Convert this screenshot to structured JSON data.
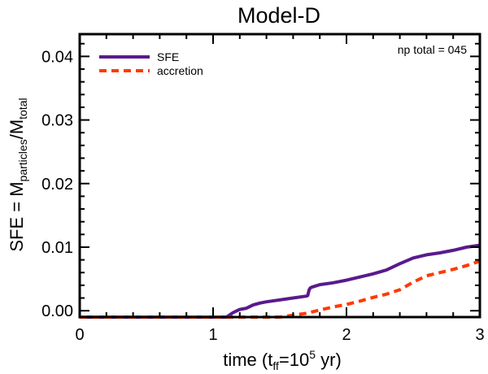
{
  "chart_data": {
    "type": "line",
    "title": "Model-D",
    "xlabel": {
      "main": "time (t",
      "sub": "ff",
      "mid": "=10",
      "sup": "5",
      "tail": " yr)"
    },
    "ylabel": {
      "main": "SFE = M",
      "sub1": "particles",
      "mid": "/M",
      "sub2": "total"
    },
    "xlim": [
      0,
      3
    ],
    "ylim": [
      -0.001,
      0.0435
    ],
    "xticks": [
      0,
      1,
      2,
      3
    ],
    "yticks": [
      0.0,
      0.01,
      0.02,
      0.03,
      0.04
    ],
    "xtick_labels": [
      "0",
      "1",
      "2",
      "3"
    ],
    "ytick_labels": [
      "0.00",
      "0.01",
      "0.02",
      "0.03",
      "0.04"
    ],
    "annotation": "np total = 045",
    "legend": {
      "placement": "top-left",
      "entries": [
        "SFE",
        "accretion"
      ]
    },
    "series": [
      {
        "name": "SFE",
        "color": "#5a1a8c",
        "style": "solid",
        "x": [
          0,
          1.1,
          1.15,
          1.2,
          1.25,
          1.3,
          1.35,
          1.4,
          1.5,
          1.6,
          1.7,
          1.71,
          1.72,
          1.73,
          1.74,
          1.8,
          1.9,
          2.0,
          2.1,
          2.2,
          2.3,
          2.4,
          2.5,
          2.6,
          2.7,
          2.8,
          2.9,
          3.0
        ],
        "y": [
          -0.001,
          -0.001,
          -0.0003,
          0.0002,
          0.0004,
          0.0009,
          0.0012,
          0.0014,
          0.0017,
          0.002,
          0.0023,
          0.0024,
          0.0033,
          0.0036,
          0.0037,
          0.0041,
          0.0044,
          0.0048,
          0.0053,
          0.0058,
          0.0064,
          0.0074,
          0.0083,
          0.0088,
          0.0091,
          0.0095,
          0.01,
          0.0103
        ]
      },
      {
        "name": "accretion",
        "color": "#ff3a00",
        "style": "dashed",
        "x": [
          0,
          1.5,
          1.6,
          1.7,
          1.8,
          1.9,
          2.0,
          2.1,
          2.2,
          2.3,
          2.4,
          2.5,
          2.6,
          2.7,
          2.8,
          2.9,
          3.0
        ],
        "y": [
          -0.001,
          -0.001,
          -0.0007,
          -0.0004,
          0.0001,
          0.0006,
          0.001,
          0.0015,
          0.0021,
          0.0026,
          0.0033,
          0.0045,
          0.0055,
          0.006,
          0.0065,
          0.0071,
          0.0078
        ]
      }
    ]
  }
}
